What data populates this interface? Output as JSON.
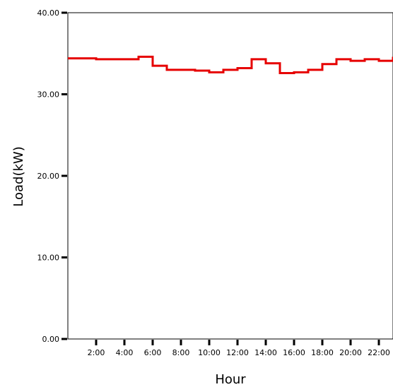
{
  "chart_data": {
    "type": "line",
    "step": true,
    "xlabel": "Hour",
    "ylabel": "Load(kW)",
    "xlim": [
      0,
      23
    ],
    "ylim": [
      0,
      40
    ],
    "x_tick_values": [
      2,
      4,
      6,
      8,
      10,
      12,
      14,
      16,
      18,
      20,
      22
    ],
    "x_tick_labels": [
      "2:00",
      "4:00",
      "6:00",
      "8:00",
      "10:00",
      "12:00",
      "14:00",
      "16:00",
      "18:00",
      "20:00",
      "22:00"
    ],
    "y_tick_values": [
      0,
      10,
      20,
      30,
      40
    ],
    "y_tick_labels": [
      "0.00",
      "10.00",
      "20.00",
      "30.00",
      "40.00"
    ],
    "series": [
      {
        "color": "#e60000",
        "x": [
          0,
          2,
          5,
          6,
          7,
          9,
          10,
          11,
          12,
          13,
          14,
          15,
          16,
          17,
          18,
          19,
          20,
          21,
          22,
          23
        ],
        "y": [
          34.4,
          34.3,
          34.6,
          33.5,
          33.0,
          32.9,
          32.7,
          33.0,
          33.2,
          34.3,
          33.8,
          32.6,
          32.7,
          33.0,
          33.7,
          34.3,
          34.1,
          34.3,
          34.1,
          34.6
        ]
      }
    ],
    "grid": false,
    "legend": false
  }
}
